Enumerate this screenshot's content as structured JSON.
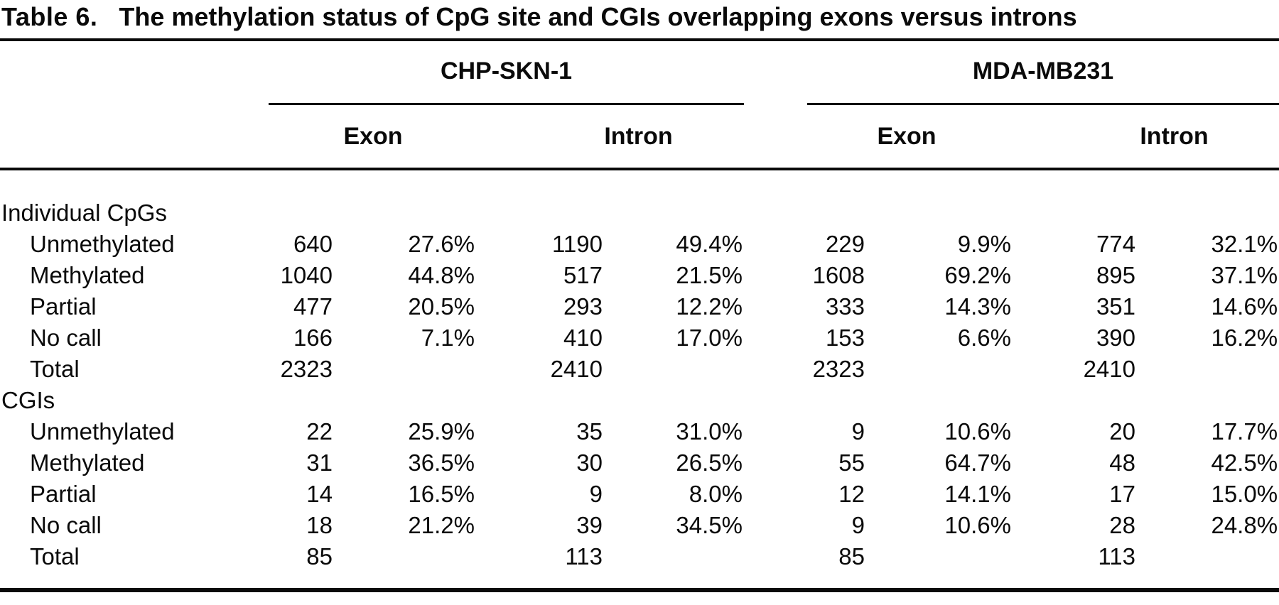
{
  "table": {
    "label": "Table 6.",
    "title": "The methylation status of CpG site and CGIs overlapping exons versus introns",
    "ink_color": "#0a0a0a",
    "column_groups": [
      "CHP-SKN-1",
      "MDA-MB231"
    ],
    "sub_columns": [
      "Exon",
      "Intron",
      "Exon",
      "Intron"
    ],
    "rows": [
      {
        "label": "Individual CpGs",
        "section": true,
        "cells": [
          "",
          "",
          "",
          "",
          "",
          "",
          "",
          ""
        ]
      },
      {
        "label": "Unmethylated",
        "section": false,
        "cells": [
          "640",
          "27.6%",
          "1190",
          "49.4%",
          "229",
          "9.9%",
          "774",
          "32.1%"
        ]
      },
      {
        "label": "Methylated",
        "section": false,
        "cells": [
          "1040",
          "44.8%",
          "517",
          "21.5%",
          "1608",
          "69.2%",
          "895",
          "37.1%"
        ]
      },
      {
        "label": "Partial",
        "section": false,
        "cells": [
          "477",
          "20.5%",
          "293",
          "12.2%",
          "333",
          "14.3%",
          "351",
          "14.6%"
        ]
      },
      {
        "label": "No call",
        "section": false,
        "cells": [
          "166",
          "7.1%",
          "410",
          "17.0%",
          "153",
          "6.6%",
          "390",
          "16.2%"
        ]
      },
      {
        "label": "Total",
        "section": false,
        "cells": [
          "2323",
          "",
          "2410",
          "",
          "2323",
          "",
          "2410",
          ""
        ]
      },
      {
        "label": "CGIs",
        "section": true,
        "cells": [
          "",
          "",
          "",
          "",
          "",
          "",
          "",
          ""
        ]
      },
      {
        "label": "Unmethylated",
        "section": false,
        "cells": [
          "22",
          "25.9%",
          "35",
          "31.0%",
          "9",
          "10.6%",
          "20",
          "17.7%"
        ]
      },
      {
        "label": "Methylated",
        "section": false,
        "cells": [
          "31",
          "36.5%",
          "30",
          "26.5%",
          "55",
          "64.7%",
          "48",
          "42.5%"
        ]
      },
      {
        "label": "Partial",
        "section": false,
        "cells": [
          "14",
          "16.5%",
          "9",
          "8.0%",
          "12",
          "14.1%",
          "17",
          "15.0%"
        ]
      },
      {
        "label": "No call",
        "section": false,
        "cells": [
          "18",
          "21.2%",
          "39",
          "34.5%",
          "9",
          "10.6%",
          "28",
          "24.8%"
        ]
      },
      {
        "label": "Total",
        "section": false,
        "cells": [
          "85",
          "",
          "113",
          "",
          "85",
          "",
          "113",
          ""
        ]
      }
    ]
  }
}
